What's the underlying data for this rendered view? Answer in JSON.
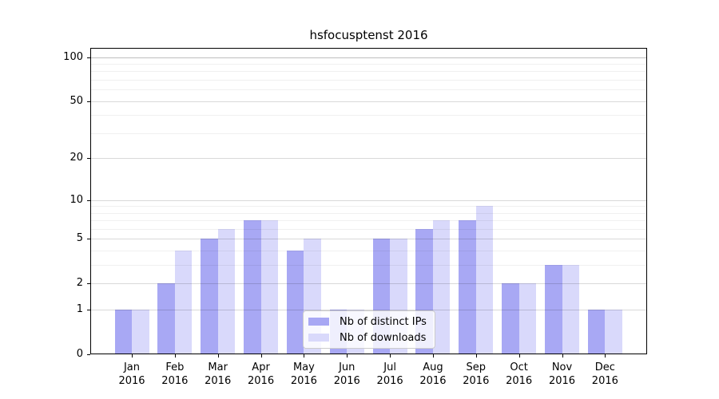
{
  "figure": {
    "background": "#ffffff"
  },
  "chart_data": {
    "type": "bar",
    "title": "hsfocusptenst 2016",
    "x": {
      "months": [
        "Jan",
        "Feb",
        "Mar",
        "Apr",
        "May",
        "Jun",
        "Jul",
        "Aug",
        "Sep",
        "Oct",
        "Nov",
        "Dec"
      ],
      "year": "2016"
    },
    "series": [
      {
        "name": "Nb of distinct IPs",
        "color": "#a8a8f4",
        "values": [
          1,
          2,
          5,
          7,
          4,
          1,
          5,
          6,
          7,
          2,
          3,
          1
        ]
      },
      {
        "name": "Nb of downloads",
        "color": "#d9d9fb",
        "values": [
          1,
          4,
          6,
          7,
          5,
          1,
          5,
          7,
          9,
          2,
          3,
          1
        ]
      }
    ],
    "yscale": "log10(1+x)",
    "yticks": [
      0,
      1,
      2,
      5,
      10,
      20,
      50,
      100
    ],
    "ylim": [
      0,
      116
    ],
    "grid": {
      "major": [
        1,
        2,
        5,
        10,
        20,
        50,
        100
      ],
      "minor": [
        3,
        4,
        6,
        7,
        8,
        9,
        30,
        40,
        60,
        70,
        80,
        90
      ]
    },
    "legend": {
      "position": "lower-center",
      "items": [
        "Nb of distinct IPs",
        "Nb of downloads"
      ]
    }
  }
}
